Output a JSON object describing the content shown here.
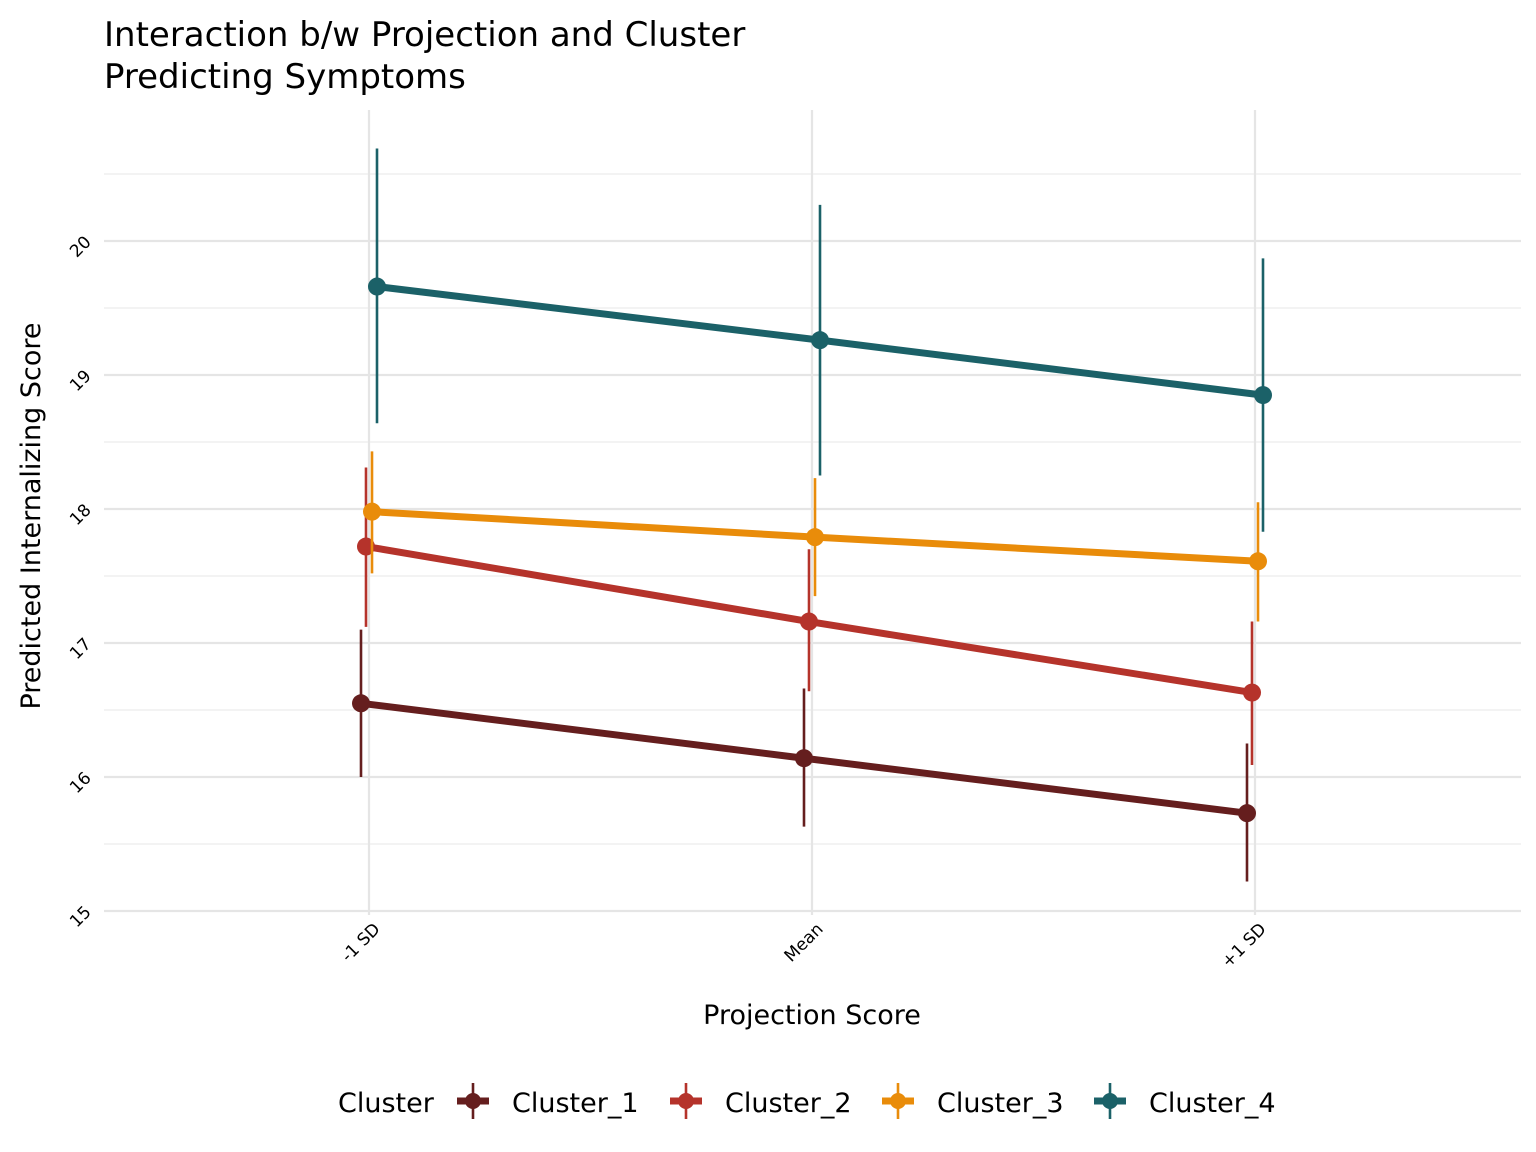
{
  "chart_data": {
    "type": "line",
    "title": "Interaction b/w Projection and Cluster",
    "subtitle": "Predicting Symptoms",
    "title_lines": [
      "Interaction b/w Projection and Cluster",
      "Predicting Symptoms"
    ],
    "xlabel": "Projection Score",
    "ylabel": "Predicted Internalizing Score",
    "categories": [
      "-1 SD",
      "Mean",
      "+1 SD"
    ],
    "ylim": [
      15,
      20.95
    ],
    "yticks": [
      15,
      16,
      17,
      18,
      19,
      20
    ],
    "ytick_labels": [
      "15",
      "16",
      "17",
      "18",
      "19",
      "20"
    ],
    "grid": true,
    "error_bars": true,
    "legend": {
      "title": "Cluster",
      "position": "bottom",
      "entries": [
        "Cluster_1",
        "Cluster_2",
        "Cluster_3",
        "Cluster_4"
      ]
    },
    "series": [
      {
        "name": "Cluster_1",
        "color": "#651e1e",
        "values": [
          16.55,
          16.14,
          15.73
        ],
        "lower": [
          16.0,
          15.63,
          15.22
        ],
        "upper": [
          17.1,
          16.66,
          16.25
        ]
      },
      {
        "name": "Cluster_2",
        "color": "#b5332b",
        "values": [
          17.72,
          17.16,
          16.63
        ],
        "lower": [
          17.12,
          16.64,
          16.09
        ],
        "upper": [
          18.31,
          17.7,
          17.16
        ]
      },
      {
        "name": "Cluster_3",
        "color": "#e98c0a",
        "values": [
          17.98,
          17.79,
          17.61
        ],
        "lower": [
          17.52,
          17.35,
          17.16
        ],
        "upper": [
          18.43,
          18.23,
          18.05
        ]
      },
      {
        "name": "Cluster_4",
        "color": "#1b6168",
        "values": [
          19.66,
          19.26,
          18.85
        ],
        "lower": [
          18.64,
          18.25,
          17.83
        ],
        "upper": [
          20.69,
          20.27,
          19.87
        ]
      }
    ]
  }
}
